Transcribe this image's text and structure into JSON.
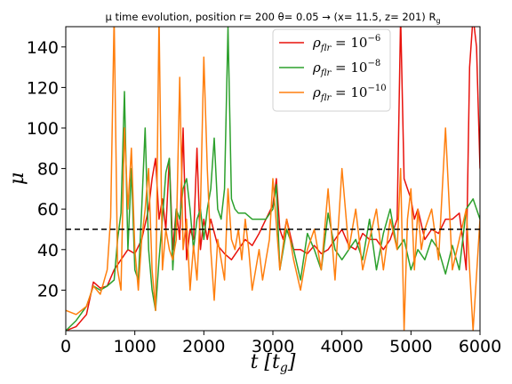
{
  "chart_data": {
    "type": "line",
    "title": "μ time evolution, position r= 200   θ= 0.05 → (x= 11.5, z= 201) R",
    "title_sub": "g",
    "xlabel": "t [t",
    "xlabel_sub": "g",
    "xlabel_end": "]",
    "ylabel": "μ",
    "xlim": [
      0,
      6000
    ],
    "ylim": [
      0,
      150
    ],
    "xticks": [
      0,
      1000,
      2000,
      3000,
      4000,
      5000,
      6000
    ],
    "yticks": [
      20,
      40,
      60,
      80,
      100,
      120,
      140
    ],
    "xtick_labels": [
      "0",
      "1000",
      "2000",
      "3000",
      "4000",
      "5000",
      "6000"
    ],
    "ytick_labels": [
      "20",
      "40",
      "60",
      "80",
      "100",
      "120",
      "140"
    ],
    "reference_line": {
      "y": 50,
      "style": "dashed",
      "color": "#000000"
    },
    "grid": false,
    "legend_position": "top-right",
    "series": [
      {
        "name": "ρ_flr = 10^-6",
        "name_base": "ρ",
        "name_sub": "flr",
        "name_eq": " = 10",
        "name_sup": "−6",
        "color": "#e8120c",
        "x": [
          0,
          150,
          300,
          400,
          500,
          600,
          700,
          800,
          900,
          1000,
          1100,
          1200,
          1250,
          1300,
          1350,
          1400,
          1450,
          1500,
          1550,
          1600,
          1650,
          1700,
          1750,
          1800,
          1850,
          1900,
          1950,
          2000,
          2050,
          2100,
          2200,
          2300,
          2400,
          2500,
          2600,
          2700,
          2800,
          2900,
          3000,
          3050,
          3100,
          3150,
          3200,
          3300,
          3400,
          3500,
          3600,
          3700,
          3800,
          3900,
          4000,
          4100,
          4200,
          4300,
          4400,
          4500,
          4600,
          4700,
          4800,
          4850,
          4900,
          4950,
          5000,
          5050,
          5100,
          5200,
          5300,
          5400,
          5500,
          5600,
          5700,
          5750,
          5800,
          5850,
          5900,
          5950,
          6000
        ],
        "y": [
          0,
          2,
          8,
          24,
          21,
          22,
          30,
          35,
          40,
          38,
          45,
          60,
          75,
          85,
          55,
          65,
          50,
          85,
          40,
          60,
          45,
          100,
          35,
          50,
          45,
          90,
          40,
          55,
          45,
          55,
          42,
          38,
          35,
          40,
          45,
          42,
          48,
          55,
          62,
          75,
          50,
          45,
          55,
          40,
          40,
          38,
          42,
          38,
          40,
          45,
          50,
          42,
          40,
          48,
          45,
          45,
          40,
          45,
          55,
          155,
          75,
          70,
          65,
          55,
          60,
          45,
          50,
          48,
          55,
          55,
          58,
          45,
          30,
          130,
          155,
          140,
          80
        ]
      },
      {
        "name": "ρ_flr = 10^-8",
        "name_base": "ρ",
        "name_sub": "flr",
        "name_eq": " = 10",
        "name_sup": "−8",
        "color": "#2ca02c",
        "x": [
          0,
          150,
          300,
          400,
          500,
          600,
          700,
          750,
          800,
          850,
          900,
          950,
          1000,
          1050,
          1100,
          1150,
          1200,
          1250,
          1300,
          1350,
          1400,
          1450,
          1500,
          1550,
          1600,
          1650,
          1700,
          1750,
          1800,
          1850,
          1900,
          1950,
          2000,
          2050,
          2100,
          2150,
          2200,
          2250,
          2300,
          2350,
          2400,
          2450,
          2500,
          2600,
          2700,
          2800,
          2900,
          3000,
          3050,
          3100,
          3200,
          3300,
          3400,
          3500,
          3600,
          3700,
          3800,
          3900,
          4000,
          4100,
          4200,
          4300,
          4400,
          4500,
          4600,
          4700,
          4800,
          4900,
          5000,
          5100,
          5200,
          5300,
          5400,
          5500,
          5600,
          5700,
          5800,
          5900,
          6000
        ],
        "y": [
          0,
          5,
          12,
          22,
          20,
          22,
          25,
          45,
          58,
          118,
          40,
          80,
          30,
          25,
          60,
          100,
          40,
          20,
          10,
          35,
          55,
          78,
          85,
          30,
          60,
          55,
          70,
          75,
          60,
          40,
          55,
          60,
          45,
          60,
          70,
          95,
          60,
          55,
          70,
          150,
          65,
          60,
          58,
          58,
          55,
          55,
          55,
          60,
          72,
          30,
          50,
          40,
          25,
          48,
          40,
          30,
          58,
          40,
          35,
          40,
          45,
          35,
          55,
          30,
          48,
          60,
          40,
          45,
          30,
          40,
          35,
          45,
          40,
          28,
          42,
          30,
          60,
          65,
          55
        ]
      },
      {
        "name": "ρ_flr = 10^-10",
        "name_base": "ρ",
        "name_sub": "flr",
        "name_eq": " = 10",
        "name_sup": "−10",
        "color": "#ff7f0e",
        "x": [
          0,
          150,
          300,
          400,
          500,
          600,
          650,
          700,
          750,
          800,
          850,
          900,
          950,
          1000,
          1050,
          1100,
          1150,
          1200,
          1250,
          1300,
          1350,
          1400,
          1450,
          1500,
          1550,
          1600,
          1650,
          1700,
          1750,
          1800,
          1850,
          1900,
          1950,
          2000,
          2050,
          2100,
          2150,
          2200,
          2250,
          2300,
          2350,
          2400,
          2450,
          2500,
          2550,
          2600,
          2650,
          2700,
          2750,
          2800,
          2850,
          2900,
          2950,
          3000,
          3100,
          3200,
          3300,
          3400,
          3500,
          3600,
          3700,
          3800,
          3900,
          4000,
          4100,
          4200,
          4300,
          4400,
          4500,
          4600,
          4700,
          4800,
          4850,
          4900,
          4950,
          5000,
          5050,
          5100,
          5150,
          5200,
          5300,
          5400,
          5500,
          5600,
          5700,
          5800,
          5900,
          6000
        ],
        "y": [
          10,
          8,
          12,
          22,
          18,
          30,
          56,
          155,
          30,
          20,
          100,
          60,
          90,
          40,
          20,
          45,
          60,
          80,
          30,
          10,
          155,
          30,
          50,
          40,
          35,
          45,
          125,
          40,
          55,
          20,
          42,
          25,
          60,
          135,
          80,
          40,
          15,
          45,
          35,
          25,
          70,
          45,
          40,
          50,
          35,
          55,
          40,
          20,
          30,
          40,
          25,
          35,
          45,
          75,
          30,
          55,
          35,
          20,
          40,
          50,
          30,
          70,
          25,
          80,
          40,
          60,
          30,
          45,
          60,
          30,
          55,
          40,
          80,
          0,
          55,
          70,
          30,
          60,
          40,
          50,
          60,
          35,
          100,
          30,
          45,
          60,
          0,
          55
        ]
      }
    ]
  }
}
